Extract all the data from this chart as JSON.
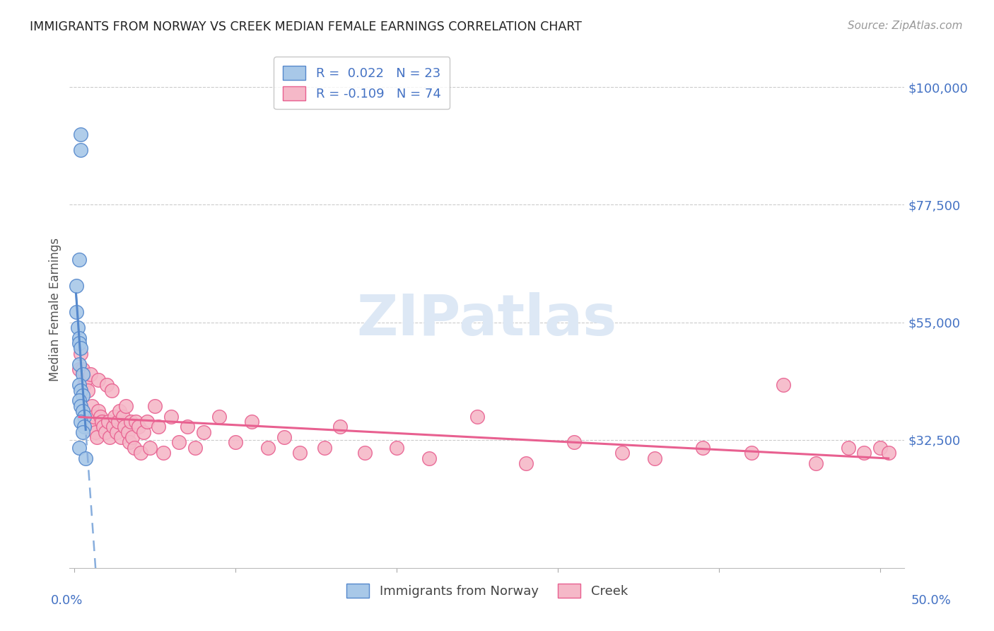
{
  "title": "IMMIGRANTS FROM NORWAY VS CREEK MEDIAN FEMALE EARNINGS CORRELATION CHART",
  "source": "Source: ZipAtlas.com",
  "ylabel": "Median Female Earnings",
  "ytick_labels": [
    "$100,000",
    "$77,500",
    "$55,000",
    "$32,500"
  ],
  "ytick_values": [
    100000,
    77500,
    55000,
    32500
  ],
  "ymin": 8000,
  "ymax": 107000,
  "xmin": -0.003,
  "xmax": 0.515,
  "norway_color": "#a8c8e8",
  "creek_color": "#f5b8c8",
  "norway_edge_color": "#5588cc",
  "creek_edge_color": "#e86090",
  "norway_line_color": "#5588cc",
  "creek_line_color": "#e86090",
  "dashed_color": "#88aedd",
  "background_color": "#ffffff",
  "grid_color": "#cccccc",
  "title_color": "#222222",
  "axis_label_color": "#4472c4",
  "watermark_color": "#dde8f5",
  "norway_x": [
    0.004,
    0.004,
    0.003,
    0.001,
    0.001,
    0.002,
    0.003,
    0.003,
    0.004,
    0.003,
    0.005,
    0.003,
    0.004,
    0.005,
    0.003,
    0.004,
    0.005,
    0.006,
    0.004,
    0.006,
    0.005,
    0.003,
    0.007
  ],
  "norway_y": [
    91000,
    88000,
    67000,
    62000,
    57000,
    54000,
    52000,
    51000,
    50000,
    47000,
    45000,
    43000,
    42000,
    41000,
    40000,
    39000,
    38000,
    37000,
    36000,
    35000,
    34000,
    31000,
    29000
  ],
  "creek_x": [
    0.003,
    0.004,
    0.005,
    0.006,
    0.007,
    0.008,
    0.009,
    0.01,
    0.011,
    0.012,
    0.013,
    0.014,
    0.015,
    0.015,
    0.016,
    0.017,
    0.018,
    0.019,
    0.02,
    0.021,
    0.022,
    0.023,
    0.024,
    0.025,
    0.026,
    0.027,
    0.028,
    0.029,
    0.03,
    0.031,
    0.032,
    0.033,
    0.034,
    0.035,
    0.036,
    0.037,
    0.038,
    0.04,
    0.041,
    0.043,
    0.045,
    0.047,
    0.05,
    0.052,
    0.055,
    0.06,
    0.065,
    0.07,
    0.075,
    0.08,
    0.09,
    0.1,
    0.11,
    0.12,
    0.13,
    0.14,
    0.155,
    0.165,
    0.18,
    0.2,
    0.22,
    0.25,
    0.28,
    0.31,
    0.34,
    0.36,
    0.39,
    0.42,
    0.44,
    0.46,
    0.48,
    0.49,
    0.5,
    0.505
  ],
  "creek_y": [
    46000,
    49000,
    46000,
    43000,
    44000,
    42000,
    35000,
    45000,
    39000,
    37000,
    34000,
    33000,
    44000,
    38000,
    37000,
    36000,
    35000,
    34000,
    43000,
    36000,
    33000,
    42000,
    35000,
    37000,
    34000,
    36000,
    38000,
    33000,
    37000,
    35000,
    39000,
    34000,
    32000,
    36000,
    33000,
    31000,
    36000,
    35000,
    30000,
    34000,
    36000,
    31000,
    39000,
    35000,
    30000,
    37000,
    32000,
    35000,
    31000,
    34000,
    37000,
    32000,
    36000,
    31000,
    33000,
    30000,
    31000,
    35000,
    30000,
    31000,
    29000,
    37000,
    28000,
    32000,
    30000,
    29000,
    31000,
    30000,
    43000,
    28000,
    31000,
    30000,
    31000,
    30000
  ]
}
